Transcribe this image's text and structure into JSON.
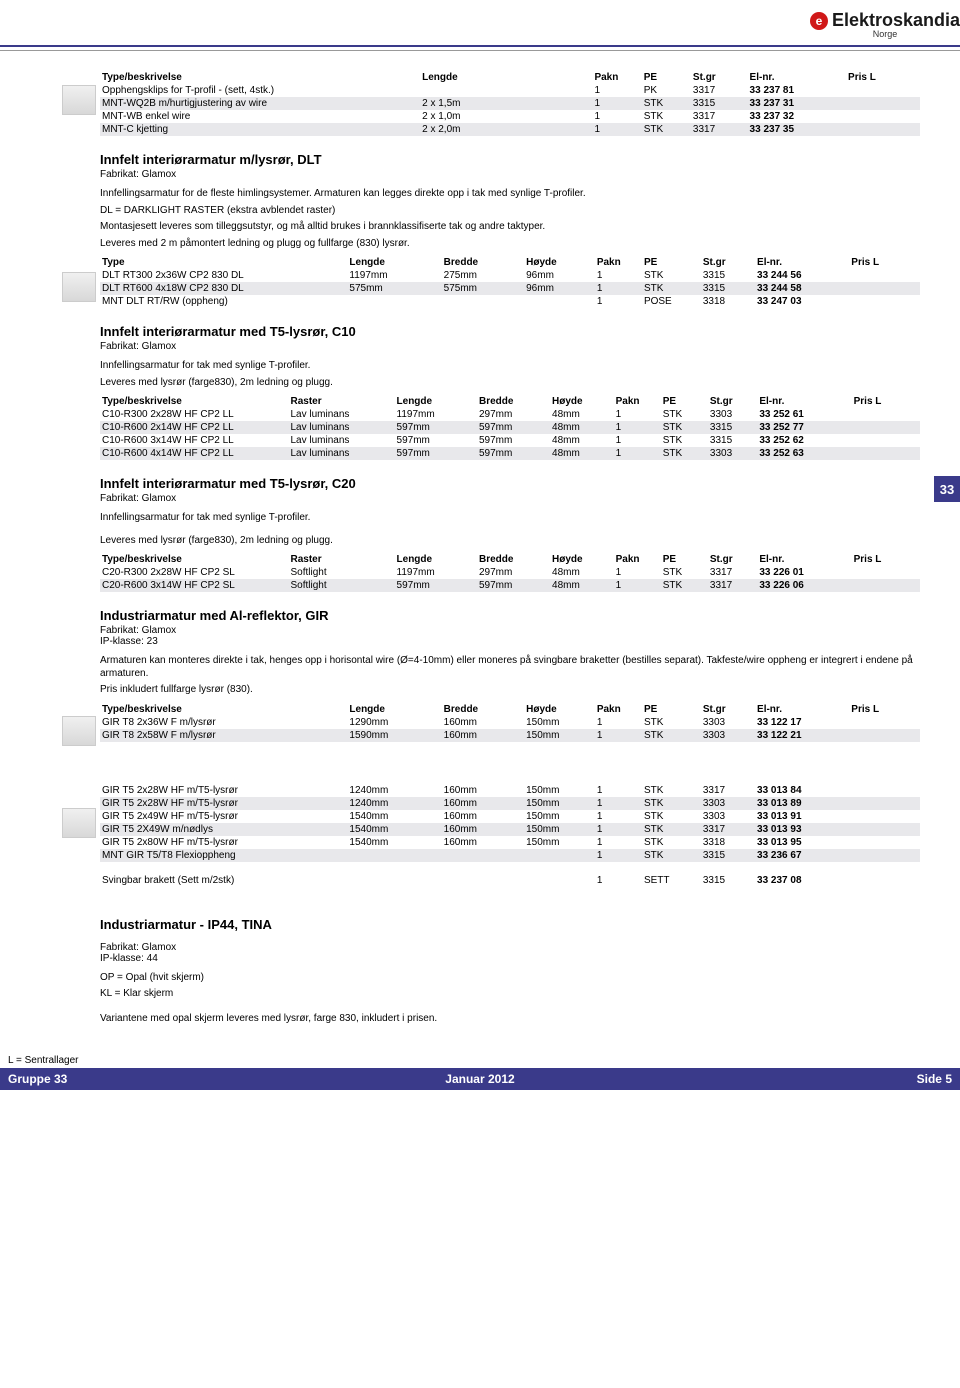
{
  "brand": {
    "name": "Elektroskandia",
    "sub": "Norge"
  },
  "side_tab": "33",
  "footer": {
    "note": "L = Sentrallager",
    "left": "Gruppe 33",
    "mid": "Januar 2012",
    "right": "Side    5"
  },
  "sec1": {
    "cols": [
      "Type/beskrivelse",
      "Lengde",
      "",
      "Pakn",
      "PE",
      "St.gr",
      "El-nr.",
      "Pris L"
    ],
    "rows": [
      [
        "Opphengsklips for T-profil - (sett, 4stk.)",
        "",
        "",
        "1",
        "PK",
        "3317",
        "33 237 81",
        ""
      ],
      [
        "MNT-WQ2B m/hurtigjustering av wire",
        "2 x 1,5m",
        "",
        "1",
        "STK",
        "3315",
        "33 237 31",
        ""
      ],
      [
        "MNT-WB enkel wire",
        "2 x 1,0m",
        "",
        "1",
        "STK",
        "3317",
        "33 237 32",
        ""
      ],
      [
        "MNT-C kjetting",
        "2 x 2,0m",
        "",
        "1",
        "STK",
        "3317",
        "33 237 35",
        ""
      ]
    ]
  },
  "sec2": {
    "title": "Innfelt interiørarmatur m/lysrør, DLT",
    "sub": "Fabrikat: Glamox",
    "desc1": "Innfellingsarmatur for de fleste himlingsystemer. Armaturen kan legges direkte opp i tak med synlige T-profiler.",
    "desc2": "DL = DARKLIGHT RASTER (ekstra avblendet raster)",
    "desc3": "Montasjesett leveres som tilleggsutstyr, og må alltid brukes i brannklassifiserte tak og andre taktyper.",
    "desc4": "Leveres med 2 m påmontert ledning og plugg og fullfarge (830) lysrør.",
    "cols": [
      "Type",
      "Lengde",
      "Bredde",
      "Høyde",
      "Pakn",
      "PE",
      "St.gr",
      "El-nr.",
      "Pris L"
    ],
    "rows": [
      [
        "DLT RT300 2x36W CP2 830 DL",
        "1197mm",
        "275mm",
        "96mm",
        "1",
        "STK",
        "3315",
        "33 244 56",
        ""
      ],
      [
        "DLT RT600 4x18W CP2 830 DL",
        "575mm",
        "575mm",
        "96mm",
        "1",
        "STK",
        "3315",
        "33 244 58",
        ""
      ],
      [
        "MNT DLT RT/RW (oppheng)",
        "",
        "",
        "",
        "1",
        "POSE",
        "3318",
        "33 247 03",
        ""
      ]
    ]
  },
  "sec3": {
    "title": "Innfelt interiørarmatur med T5-lysrør, C10",
    "sub": "Fabrikat: Glamox",
    "desc1": "Innfellingsarmatur for tak med synlige T-profiler.",
    "desc2": "Leveres med lysrør (farge830), 2m ledning og plugg.",
    "cols": [
      "Type/beskrivelse",
      "Raster",
      "Lengde",
      "Bredde",
      "Høyde",
      "Pakn",
      "PE",
      "St.gr",
      "El-nr.",
      "Pris L"
    ],
    "rows": [
      [
        "C10-R300 2x28W HF CP2 LL",
        "Lav luminans",
        "1197mm",
        "297mm",
        "48mm",
        "1",
        "STK",
        "3303",
        "33 252 61",
        ""
      ],
      [
        "C10-R600 2x14W HF CP2 LL",
        "Lav luminans",
        "597mm",
        "597mm",
        "48mm",
        "1",
        "STK",
        "3315",
        "33 252 77",
        ""
      ],
      [
        "C10-R600 3x14W HF CP2 LL",
        "Lav luminans",
        "597mm",
        "597mm",
        "48mm",
        "1",
        "STK",
        "3315",
        "33 252 62",
        ""
      ],
      [
        "C10-R600 4x14W HF CP2 LL",
        "Lav luminans",
        "597mm",
        "597mm",
        "48mm",
        "1",
        "STK",
        "3303",
        "33 252 63",
        ""
      ]
    ]
  },
  "sec4": {
    "title": "Innfelt interiørarmatur med T5-lysrør, C20",
    "sub": "Fabrikat: Glamox",
    "desc1": "Innfellingsarmatur for tak med synlige T-profiler.",
    "desc2": "Leveres med lysrør (farge830), 2m ledning og plugg.",
    "cols": [
      "Type/beskrivelse",
      "Raster",
      "Lengde",
      "Bredde",
      "Høyde",
      "Pakn",
      "PE",
      "St.gr",
      "El-nr.",
      "Pris L"
    ],
    "rows": [
      [
        "C20-R300 2x28W HF CP2 SL",
        "Softlight",
        "1197mm",
        "297mm",
        "48mm",
        "1",
        "STK",
        "3317",
        "33 226 01",
        ""
      ],
      [
        "C20-R600 3x14W HF CP2 SL",
        "Softlight",
        "597mm",
        "597mm",
        "48mm",
        "1",
        "STK",
        "3317",
        "33 226 06",
        ""
      ]
    ]
  },
  "sec5": {
    "title": "Industriarmatur med Al-reflektor, GIR",
    "sub1": "Fabrikat: Glamox",
    "sub2": "IP-klasse: 23",
    "desc1": "Armaturen kan monteres direkte i tak, henges opp i horisontal wire (Ø=4-10mm) eller moneres på svingbare braketter (bestilles separat).  Takfeste/wire oppheng er integrert i endene på armaturen.",
    "desc2": "Pris inkludert fullfarge lysrør (830).",
    "cols": [
      "Type/beskrivelse",
      "Lengde",
      "Bredde",
      "Høyde",
      "Pakn",
      "PE",
      "St.gr",
      "El-nr.",
      "Pris L"
    ],
    "rows1": [
      [
        "GIR T8 2x36W F m/lysrør",
        "1290mm",
        "160mm",
        "150mm",
        "1",
        "STK",
        "3303",
        "33 122 17",
        ""
      ],
      [
        "GIR T8 2x58W F m/lysrør",
        "1590mm",
        "160mm",
        "150mm",
        "1",
        "STK",
        "3303",
        "33 122 21",
        ""
      ]
    ],
    "rows2": [
      [
        "GIR T5 2x28W HF m/T5-lysrør",
        "1240mm",
        "160mm",
        "150mm",
        "1",
        "STK",
        "3317",
        "33 013 84",
        ""
      ],
      [
        "GIR T5 2x28W HF m/T5-lysrør",
        "1240mm",
        "160mm",
        "150mm",
        "1",
        "STK",
        "3303",
        "33 013 89",
        ""
      ],
      [
        "GIR T5 2x49W HF m/T5-lysrør",
        "1540mm",
        "160mm",
        "150mm",
        "1",
        "STK",
        "3303",
        "33 013 91",
        ""
      ],
      [
        "GIR T5 2X49W m/nødlys",
        "1540mm",
        "160mm",
        "150mm",
        "1",
        "STK",
        "3317",
        "33 013 93",
        ""
      ],
      [
        "GIR T5 2x80W HF m/T5-lysrør",
        "1540mm",
        "160mm",
        "150mm",
        "1",
        "STK",
        "3318",
        "33 013 95",
        ""
      ],
      [
        "MNT GIR T5/T8 Flexioppheng",
        "",
        "",
        "",
        "1",
        "STK",
        "3315",
        "33 236 67",
        ""
      ]
    ],
    "rows3": [
      [
        "Svingbar brakett (Sett m/2stk)",
        "",
        "",
        "",
        "1",
        "SETT",
        "3315",
        "33 237 08",
        ""
      ]
    ]
  },
  "sec6": {
    "title": "Industriarmatur - IP44, TINA",
    "sub1": "Fabrikat: Glamox",
    "sub2": "IP-klasse: 44",
    "desc1": "OP = Opal (hvit skjerm)",
    "desc2": "KL = Klar skjerm",
    "desc3": "Variantene med opal skjerm leveres med lysrør, farge 830, inkludert i prisen."
  },
  "colwidths": {
    "t1": [
      "260",
      "100",
      "40",
      "40",
      "40",
      "46",
      "80",
      "60"
    ],
    "t2": [
      "210",
      "80",
      "70",
      "60",
      "40",
      "50",
      "46",
      "80",
      "60"
    ],
    "t3": [
      "160",
      "90",
      "70",
      "62",
      "54",
      "40",
      "40",
      "42",
      "80",
      "58"
    ],
    "t5": [
      "210",
      "80",
      "70",
      "60",
      "40",
      "50",
      "46",
      "80",
      "60"
    ]
  },
  "shade_color": "#e8e8eb",
  "brand_red": "#d01818",
  "bar_color": "#3a3a8a"
}
